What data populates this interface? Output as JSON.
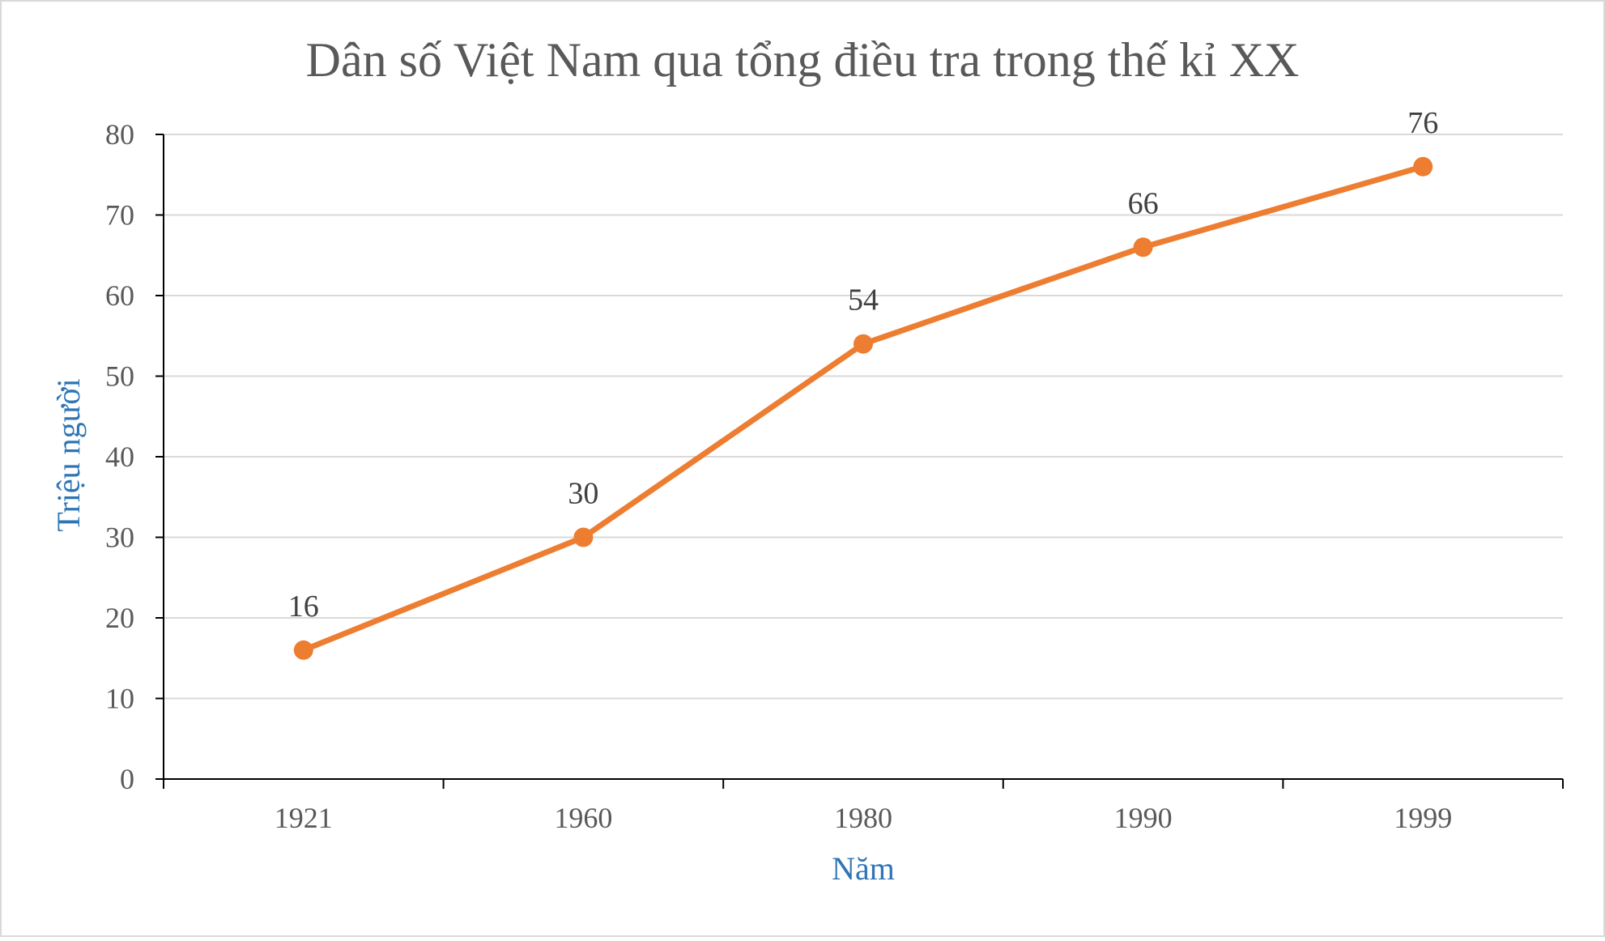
{
  "chart_data": {
    "type": "line",
    "title": "Dân số Việt Nam qua tổng điều tra trong thế kỉ XX",
    "xlabel": "Năm",
    "ylabel": "Triệu người",
    "categories": [
      "1921",
      "1960",
      "1980",
      "1990",
      "1999"
    ],
    "series": [
      {
        "values": [
          16,
          30,
          54,
          66,
          76
        ],
        "color": "#ed7d31"
      }
    ],
    "ylim": [
      0,
      80
    ],
    "yticks": [
      0,
      10,
      20,
      30,
      40,
      50,
      60,
      70,
      80
    ],
    "grid": true,
    "data_labels": true,
    "legend": "none"
  }
}
